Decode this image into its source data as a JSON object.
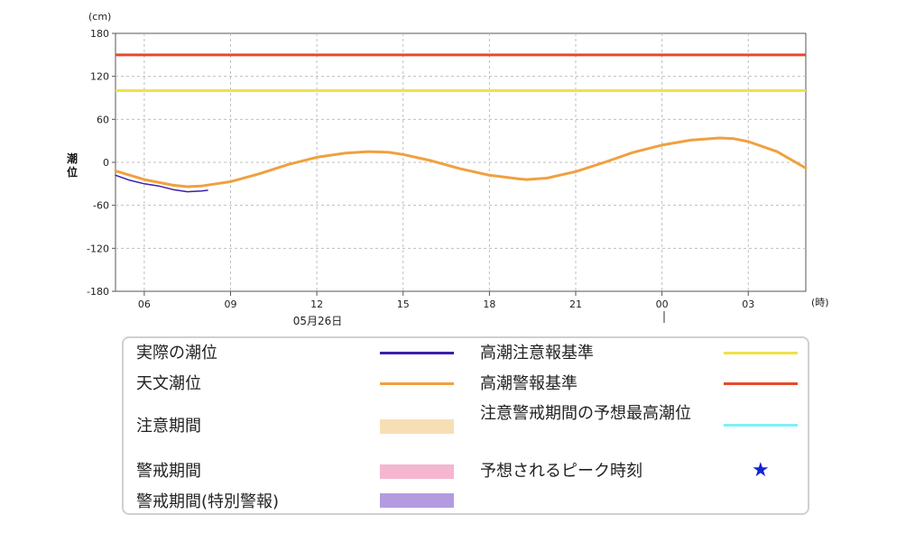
{
  "chart_data": {
    "type": "line",
    "y_unit": "(cm)",
    "x_unit": "(時)",
    "ylabel": "潮位",
    "ylim": [
      -180,
      180
    ],
    "yticks": [
      180,
      120,
      60,
      0,
      -60,
      -120,
      -180
    ],
    "x_range_hours": [
      5,
      29
    ],
    "x_ticks": [
      {
        "hour": 6,
        "label": "06"
      },
      {
        "hour": 9,
        "label": "09"
      },
      {
        "hour": 12,
        "label": "12"
      },
      {
        "hour": 15,
        "label": "15"
      },
      {
        "hour": 18,
        "label": "18"
      },
      {
        "hour": 21,
        "label": "21"
      },
      {
        "hour": 24,
        "label": "00"
      },
      {
        "hour": 27,
        "label": "03"
      }
    ],
    "date_label": "05月26日",
    "grid": true,
    "series": [
      {
        "name": "天文潮位",
        "color": "#f0a040",
        "x": [
          5,
          6,
          7,
          7.5,
          8,
          9,
          10,
          11,
          12,
          13,
          13.8,
          14.5,
          15,
          16,
          17,
          18,
          19,
          19.3,
          20,
          21,
          22,
          23,
          24,
          25,
          26,
          26.5,
          27,
          28,
          29
        ],
        "y": [
          -12,
          -24,
          -32,
          -34,
          -33,
          -27,
          -16,
          -3,
          7,
          13,
          15,
          14,
          11,
          2,
          -9,
          -18,
          -23,
          -24,
          -22,
          -13,
          0,
          14,
          24,
          31,
          34,
          33,
          29,
          15,
          -8
        ]
      },
      {
        "name": "実際の潮位",
        "color": "#3b1fa8",
        "x": [
          5,
          5.5,
          6,
          6.5,
          7,
          7.5,
          8,
          8.2
        ],
        "y": [
          -18,
          -25,
          -30,
          -33,
          -38,
          -41,
          -40,
          -39
        ]
      }
    ],
    "thresholds": [
      {
        "name": "高潮警報基準",
        "value": 150,
        "color": "#e64a2b"
      },
      {
        "name": "高潮注意報基準",
        "value": 100,
        "color": "#eee24a"
      }
    ]
  },
  "legend": {
    "items": [
      {
        "label": "実際の潮位",
        "color": "#3b1fa8",
        "kind": "line"
      },
      {
        "label": "天文潮位",
        "color": "#f0a040",
        "kind": "line"
      },
      {
        "label": "注意期間",
        "color": "#f7dfb5",
        "kind": "band"
      },
      {
        "label": "警戒期間",
        "color": "#f4b7cf",
        "kind": "band"
      },
      {
        "label": "警戒期間(特別警報)",
        "color": "#b39be0",
        "kind": "band"
      },
      {
        "label": "高潮注意報基準",
        "color": "#eee24a",
        "kind": "line"
      },
      {
        "label": "高潮警報基準",
        "color": "#e64a2b",
        "kind": "line"
      },
      {
        "label": "注意警戒期間の予想最高潮位",
        "color": "#7ef0f7",
        "kind": "line"
      },
      {
        "label": "予想されるピーク時刻",
        "color": "#1224d6",
        "kind": "star",
        "symbol": "★"
      }
    ]
  }
}
